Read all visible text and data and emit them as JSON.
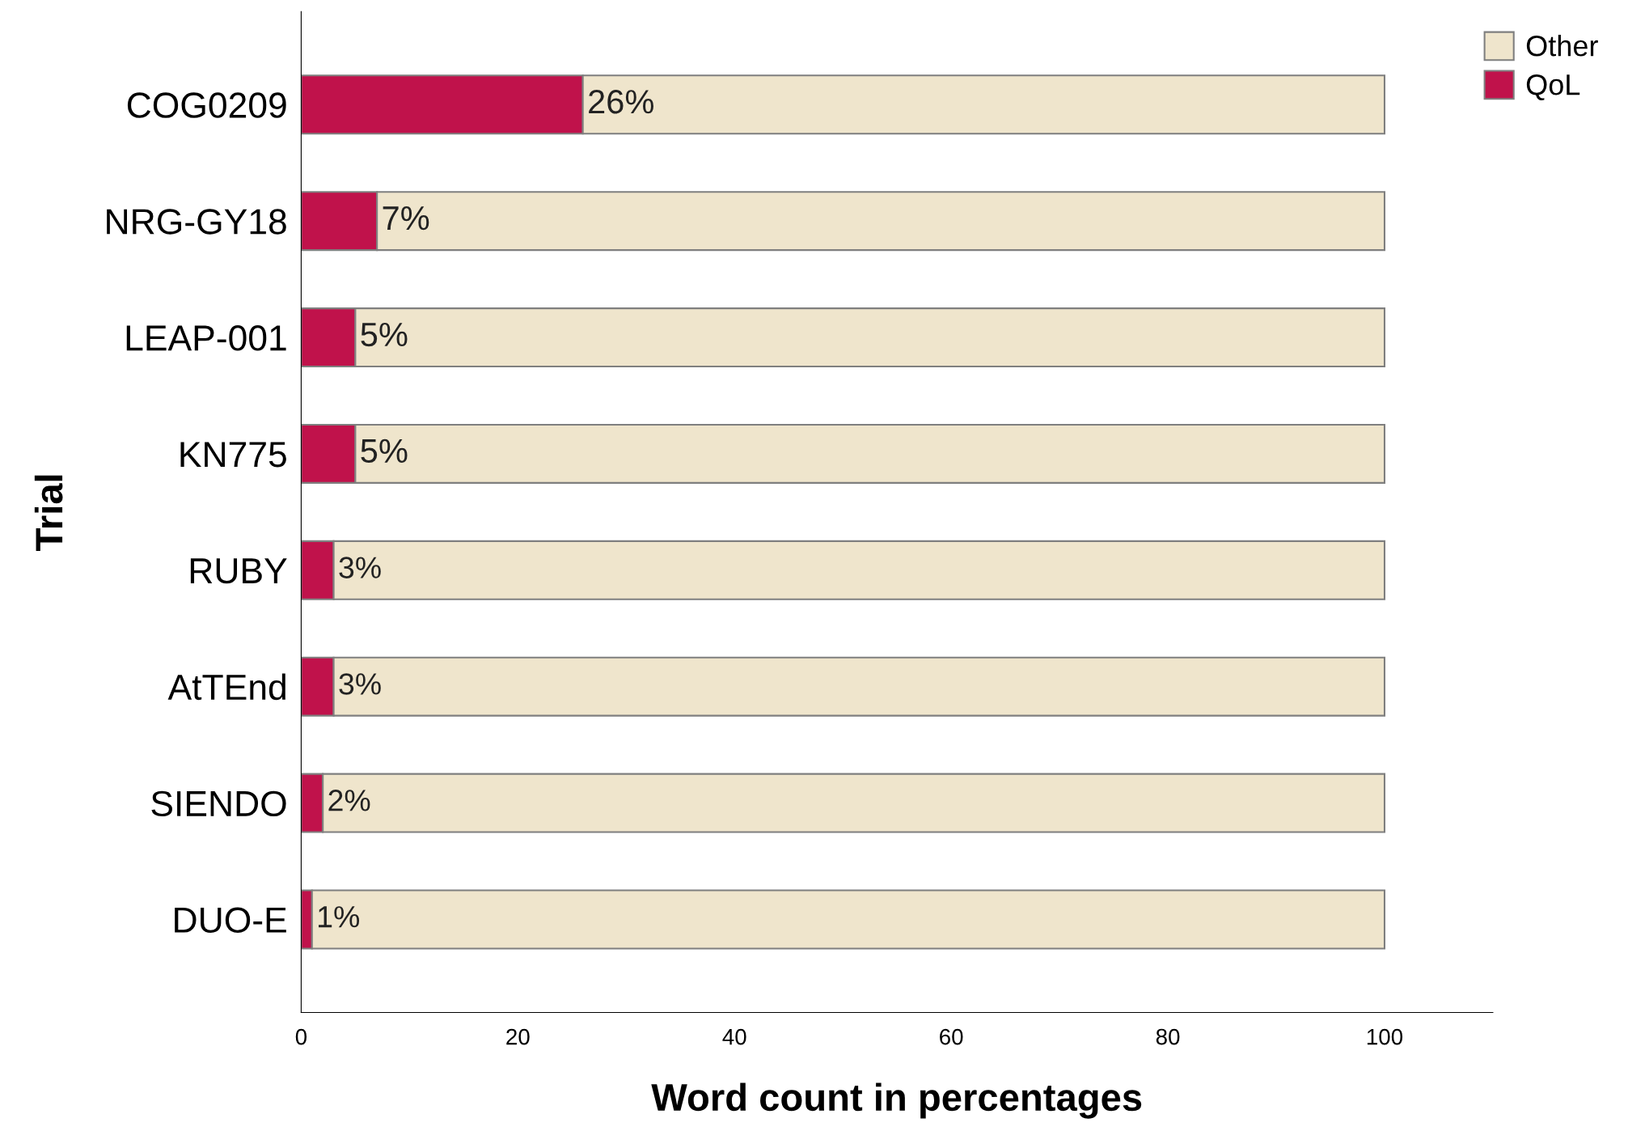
{
  "chart_data": {
    "type": "bar",
    "orientation": "horizontal",
    "stacked": true,
    "xlabel": "Word count in percentages",
    "ylabel": "Trial",
    "categories": [
      "COG0209",
      "NRG-GY18",
      "LEAP-001",
      "KN775",
      "RUBY",
      "AtTEnd",
      "SIENDO",
      "DUO-E"
    ],
    "series": [
      {
        "name": "QoL",
        "color": "#c0124b",
        "values": [
          26,
          7,
          5,
          5,
          3,
          3,
          2,
          1
        ],
        "value_labels": [
          "26%",
          "7%",
          "5%",
          "5%",
          "3%",
          "3%",
          "2%",
          "1%"
        ]
      },
      {
        "name": "Other",
        "color": "#efe5cc",
        "values": [
          74,
          93,
          95,
          95,
          97,
          97,
          98,
          99
        ]
      }
    ],
    "xlim": [
      0,
      110
    ],
    "xticks": [
      0,
      20,
      40,
      60,
      80,
      100
    ],
    "grid": false,
    "legend": "top right"
  }
}
